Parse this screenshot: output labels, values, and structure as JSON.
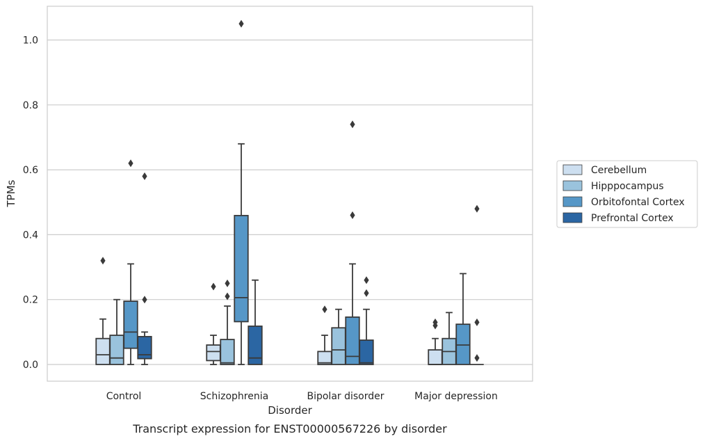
{
  "chart_data": {
    "type": "box",
    "caption": "Transcript expression for ENST00000567226 by disorder",
    "xlabel": "Disorder",
    "ylabel": "TPMs",
    "ylim": [
      -0.05,
      1.1
    ],
    "yticks": [
      0.0,
      0.2,
      0.4,
      0.6,
      0.8,
      1.0
    ],
    "ytick_labels": [
      "0.0",
      "0.2",
      "0.4",
      "0.6",
      "0.8",
      "1.0"
    ],
    "grid": "horizontal",
    "legend_position": "right",
    "categories": [
      "Control",
      "Schizophrenia",
      "Bipolar disorder",
      "Major depression"
    ],
    "series": [
      {
        "name": "Cerebellum",
        "color": "#cddff0",
        "boxes": [
          {
            "whislo": 0.0,
            "q1": 0.0,
            "med": 0.03,
            "q3": 0.08,
            "whishi": 0.14,
            "fliers": [
              0.32
            ]
          },
          {
            "whislo": 0.0,
            "q1": 0.012,
            "med": 0.04,
            "q3": 0.06,
            "whishi": 0.09,
            "fliers": [
              0.24
            ]
          },
          {
            "whislo": 0.0,
            "q1": 0.0,
            "med": 0.005,
            "q3": 0.04,
            "whishi": 0.09,
            "fliers": [
              0.17
            ]
          },
          {
            "whislo": 0.0,
            "q1": 0.0,
            "med": 0.0,
            "q3": 0.045,
            "whishi": 0.08,
            "fliers": [
              0.12,
              0.13
            ]
          }
        ]
      },
      {
        "name": "Hipppocampus",
        "color": "#9ac3dd",
        "boxes": [
          {
            "whislo": 0.0,
            "q1": 0.0,
            "med": 0.02,
            "q3": 0.09,
            "whishi": 0.2,
            "fliers": []
          },
          {
            "whislo": 0.0,
            "q1": 0.0,
            "med": 0.005,
            "q3": 0.077,
            "whishi": 0.18,
            "fliers": [
              0.21,
              0.25
            ]
          },
          {
            "whislo": 0.0,
            "q1": 0.0,
            "med": 0.045,
            "q3": 0.113,
            "whishi": 0.17,
            "fliers": []
          },
          {
            "whislo": 0.0,
            "q1": 0.0,
            "med": 0.04,
            "q3": 0.08,
            "whishi": 0.16,
            "fliers": []
          }
        ]
      },
      {
        "name": "Orbitofontal Cortex",
        "color": "#5697c7",
        "boxes": [
          {
            "whislo": 0.0,
            "q1": 0.05,
            "med": 0.1,
            "q3": 0.195,
            "whishi": 0.31,
            "fliers": [
              0.62
            ]
          },
          {
            "whislo": 0.0,
            "q1": 0.132,
            "med": 0.206,
            "q3": 0.459,
            "whishi": 0.68,
            "fliers": [
              1.05
            ]
          },
          {
            "whislo": 0.0,
            "q1": 0.0,
            "med": 0.025,
            "q3": 0.146,
            "whishi": 0.31,
            "fliers": [
              0.46,
              0.74
            ]
          },
          {
            "whislo": 0.0,
            "q1": 0.0,
            "med": 0.06,
            "q3": 0.124,
            "whishi": 0.28,
            "fliers": []
          }
        ]
      },
      {
        "name": "Prefrontal Cortex",
        "color": "#2b66a3",
        "boxes": [
          {
            "whislo": 0.0,
            "q1": 0.018,
            "med": 0.03,
            "q3": 0.086,
            "whishi": 0.1,
            "fliers": [
              0.2,
              0.58
            ]
          },
          {
            "whislo": 0.0,
            "q1": 0.0,
            "med": 0.02,
            "q3": 0.118,
            "whishi": 0.26,
            "fliers": []
          },
          {
            "whislo": 0.0,
            "q1": 0.0,
            "med": 0.005,
            "q3": 0.075,
            "whishi": 0.17,
            "fliers": [
              0.22,
              0.26
            ]
          },
          {
            "whislo": 0.0,
            "q1": 0.0,
            "med": 0.0,
            "q3": 0.0,
            "whishi": 0.0,
            "fliers": [
              0.02,
              0.13,
              0.48
            ]
          }
        ]
      }
    ]
  }
}
